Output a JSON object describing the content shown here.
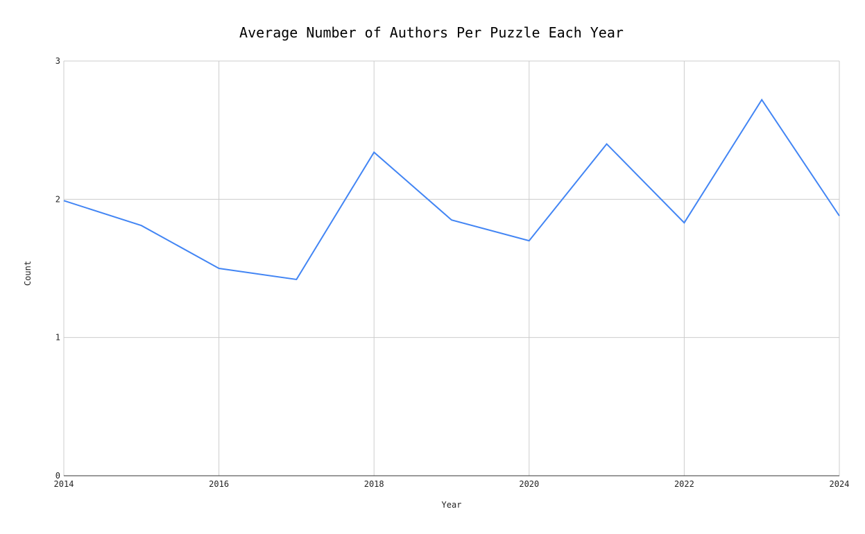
{
  "chart_data": {
    "type": "line",
    "title": "Average Number of Authors Per Puzzle Each Year",
    "xlabel": "Year",
    "ylabel": "Count",
    "x": [
      2014,
      2015,
      2016,
      2017,
      2018,
      2019,
      2020,
      2021,
      2022,
      2023,
      2024
    ],
    "series": [
      {
        "values": [
          1.99,
          1.81,
          1.5,
          1.42,
          2.34,
          1.85,
          1.7,
          2.4,
          1.83,
          2.72,
          1.88
        ]
      }
    ],
    "xlim": [
      2014,
      2024
    ],
    "ylim": [
      0,
      3
    ],
    "x_ticks": [
      "2014",
      "2016",
      "2018",
      "2020",
      "2022",
      "2024"
    ],
    "y_ticks": [
      "0",
      "1",
      "2",
      "3"
    ],
    "grid": true,
    "legend": "none",
    "colors": {
      "series": "#4285f4",
      "grid": "#cccccc",
      "baseline": "#333333"
    }
  }
}
